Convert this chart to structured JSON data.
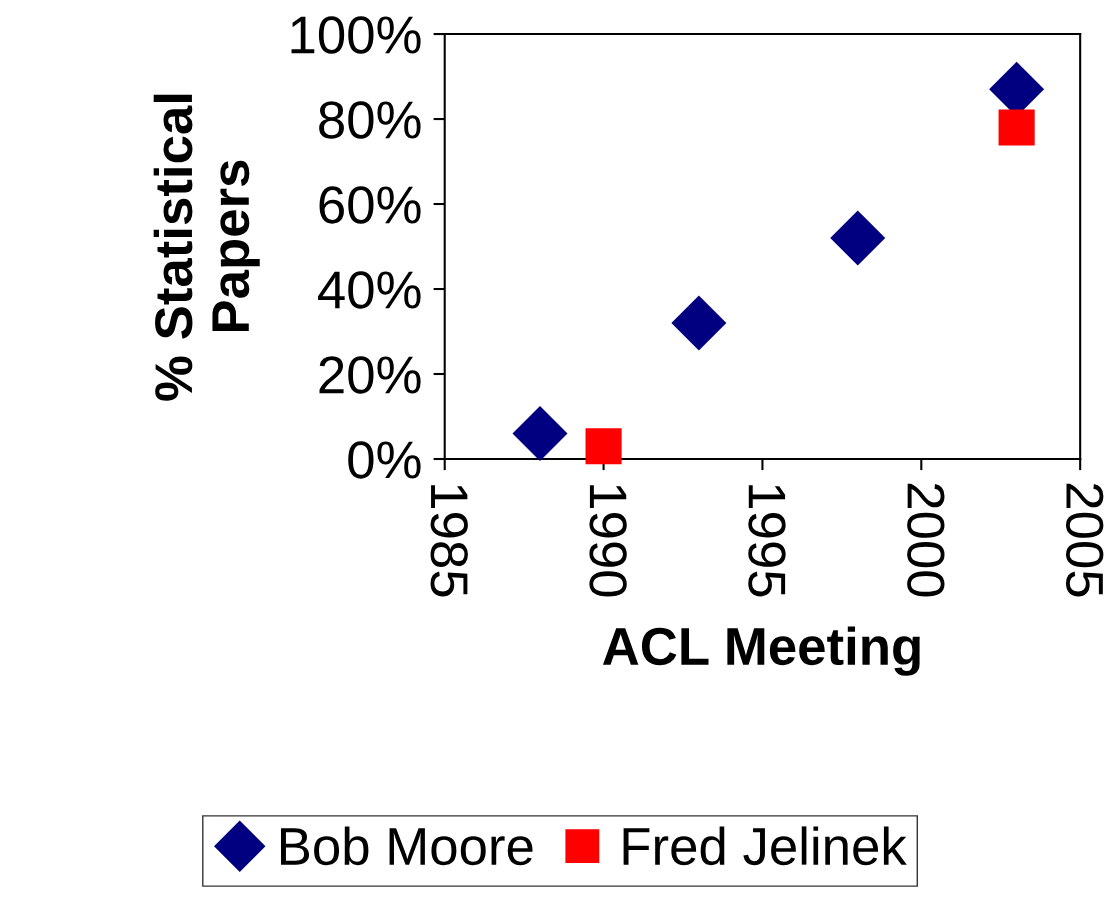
{
  "chart_data": {
    "type": "scatter",
    "xlabel": "ACL Meeting",
    "ylabel": "% Statistical\nPapers",
    "series": [
      {
        "name": "Bob Moore",
        "color": "#000080",
        "marker": "diamond",
        "x": [
          1988,
          1993,
          1998,
          2003
        ],
        "values": [
          6,
          32,
          52,
          87
        ]
      },
      {
        "name": "Fred Jelinek",
        "color": "#ff0000",
        "marker": "square",
        "x": [
          1990,
          2003
        ],
        "values": [
          3,
          78
        ]
      }
    ],
    "xlim": [
      1985,
      2005
    ],
    "xticks": [
      1985,
      1990,
      1995,
      2000,
      2005
    ],
    "ylim": [
      0,
      100
    ],
    "yticks": [
      {
        "value": 0,
        "label": "0%"
      },
      {
        "value": 20,
        "label": "20%"
      },
      {
        "value": 40,
        "label": "40%"
      },
      {
        "value": 60,
        "label": "60%"
      },
      {
        "value": 80,
        "label": "80%"
      },
      {
        "value": 100,
        "label": "100%"
      }
    ],
    "grid": false,
    "legend": "bottom"
  }
}
